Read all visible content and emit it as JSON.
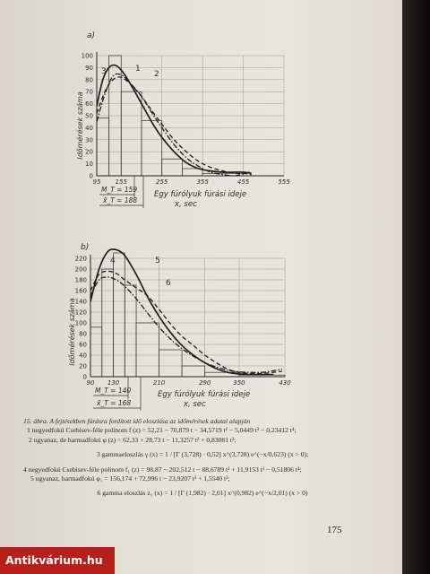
{
  "chart_data": [
    {
      "type": "line",
      "panel_label": "a)",
      "title": "",
      "xlabel": "Egy fúrólyuk fúrási ideje",
      "xlabel_unit": "x, sec",
      "ylabel": "Időmérések száma",
      "x_ticks": [
        "95",
        "155",
        "255",
        "355",
        "455",
        "555"
      ],
      "y_ticks": [
        "0",
        "10",
        "20",
        "30",
        "40",
        "50",
        "60",
        "70",
        "80",
        "90",
        "100"
      ],
      "xlim": [
        95,
        555
      ],
      "ylim": [
        0,
        100
      ],
      "histogram": [
        {
          "x0": 95,
          "x1": 125,
          "y": 48
        },
        {
          "x0": 125,
          "x1": 155,
          "y": 100
        },
        {
          "x0": 155,
          "x1": 205,
          "y": 70
        },
        {
          "x0": 205,
          "x1": 255,
          "y": 46
        },
        {
          "x0": 255,
          "x1": 305,
          "y": 14
        },
        {
          "x0": 305,
          "x1": 355,
          "y": 6
        },
        {
          "x0": 355,
          "x1": 455,
          "y": 2
        }
      ],
      "series": [
        {
          "name": "1",
          "style": "dash",
          "points": [
            [
              95,
              52
            ],
            [
              115,
              70
            ],
            [
              135,
              80
            ],
            [
              155,
              82
            ],
            [
              175,
              77
            ],
            [
              205,
              66
            ],
            [
              235,
              52
            ],
            [
              255,
              43
            ],
            [
              285,
              30
            ],
            [
              315,
              20
            ],
            [
              345,
              12
            ],
            [
              375,
              7
            ],
            [
              405,
              4
            ],
            [
              435,
              2
            ],
            [
              455,
              2
            ],
            [
              475,
              1
            ]
          ]
        },
        {
          "name": "2",
          "style": "dashdot",
          "points": [
            [
              95,
              45
            ],
            [
              115,
              68
            ],
            [
              135,
              83
            ],
            [
              155,
              84
            ],
            [
              175,
              78
            ],
            [
              205,
              66
            ],
            [
              235,
              50
            ],
            [
              255,
              40
            ],
            [
              285,
              26
            ],
            [
              315,
              15
            ],
            [
              345,
              8
            ],
            [
              375,
              3
            ],
            [
              405,
              1
            ],
            [
              435,
              0
            ],
            [
              455,
              2
            ],
            [
              475,
              3
            ]
          ]
        },
        {
          "name": "3",
          "style": "solid",
          "points": [
            [
              95,
              58
            ],
            [
              110,
              80
            ],
            [
              125,
              90
            ],
            [
              140,
              92
            ],
            [
              155,
              88
            ],
            [
              175,
              78
            ],
            [
              205,
              60
            ],
            [
              235,
              42
            ],
            [
              255,
              32
            ],
            [
              285,
              20
            ],
            [
              315,
              11
            ],
            [
              345,
              6
            ],
            [
              375,
              4
            ],
            [
              405,
              3
            ],
            [
              435,
              3
            ],
            [
              455,
              3
            ],
            [
              475,
              2
            ]
          ]
        }
      ],
      "annotations": [
        "1",
        "2",
        "3",
        "M_T = 159",
        "x̄_T = 188"
      ]
    },
    {
      "type": "line",
      "panel_label": "b)",
      "title": "",
      "xlabel": "Egy fúrólyuk fúrási ideje",
      "xlabel_unit": "x, sec",
      "ylabel": "Időmérések száma",
      "x_ticks": [
        "90",
        "130",
        "210",
        "290",
        "350",
        "430"
      ],
      "y_ticks": [
        "0",
        "20",
        "40",
        "60",
        "80",
        "100",
        "120",
        "140",
        "160",
        "180",
        "200",
        "220"
      ],
      "xlim": [
        90,
        430
      ],
      "ylim": [
        0,
        220
      ],
      "histogram": [
        {
          "x0": 90,
          "x1": 110,
          "y": 92
        },
        {
          "x0": 110,
          "x1": 130,
          "y": 200
        },
        {
          "x0": 130,
          "x1": 150,
          "y": 230
        },
        {
          "x0": 150,
          "x1": 170,
          "y": 170
        },
        {
          "x0": 170,
          "x1": 210,
          "y": 100
        },
        {
          "x0": 210,
          "x1": 250,
          "y": 50
        },
        {
          "x0": 250,
          "x1": 290,
          "y": 20
        },
        {
          "x0": 290,
          "x1": 350,
          "y": 8
        },
        {
          "x0": 350,
          "x1": 430,
          "y": 3
        }
      ],
      "series": [
        {
          "name": "4",
          "style": "dash",
          "points": [
            [
              90,
              160
            ],
            [
              105,
              190
            ],
            [
              120,
              196
            ],
            [
              135,
              192
            ],
            [
              150,
              180
            ],
            [
              170,
              165
            ],
            [
              190,
              150
            ],
            [
              210,
              125
            ],
            [
              230,
              98
            ],
            [
              250,
              75
            ],
            [
              270,
              58
            ],
            [
              290,
              40
            ],
            [
              310,
              26
            ],
            [
              330,
              14
            ],
            [
              350,
              8
            ],
            [
              370,
              6
            ],
            [
              390,
              6
            ],
            [
              410,
              8
            ],
            [
              425,
              10
            ]
          ]
        },
        {
          "name": "5",
          "style": "solid",
          "points": [
            [
              90,
              140
            ],
            [
              105,
              200
            ],
            [
              120,
              232
            ],
            [
              135,
              236
            ],
            [
              150,
              225
            ],
            [
              170,
              190
            ],
            [
              190,
              148
            ],
            [
              210,
              112
            ],
            [
              230,
              82
            ],
            [
              250,
              58
            ],
            [
              270,
              40
            ],
            [
              290,
              26
            ],
            [
              310,
              15
            ],
            [
              330,
              8
            ],
            [
              350,
              5
            ],
            [
              370,
              4
            ],
            [
              390,
              4
            ],
            [
              410,
              4
            ]
          ]
        },
        {
          "name": "6",
          "style": "dashdot",
          "points": [
            [
              90,
              150
            ],
            [
              105,
              180
            ],
            [
              120,
              185
            ],
            [
              135,
              180
            ],
            [
              150,
              168
            ],
            [
              170,
              145
            ],
            [
              190,
              118
            ],
            [
              210,
              92
            ],
            [
              230,
              70
            ],
            [
              250,
              52
            ],
            [
              270,
              38
            ],
            [
              290,
              26
            ],
            [
              310,
              18
            ],
            [
              330,
              12
            ],
            [
              350,
              9
            ],
            [
              370,
              8
            ],
            [
              390,
              8
            ],
            [
              410,
              11
            ],
            [
              425,
              14
            ]
          ]
        }
      ],
      "annotations": [
        "4",
        "5",
        "6",
        "M_T = 140",
        "x̄_T = 168"
      ]
    }
  ],
  "caption": {
    "line1": "15. ábra. A fejtésekben fúrásra fordított idő eloszlása az időmérések adatai alapján",
    "line2": "1 negyedfokú Csebisev-féle polinom f (z) = 52,21 − 70,879 t − 34,5719 t² − 5,0449 t³ − 0,23412 t⁴;",
    "line3": "2 ugyanaz, de harmadfokú φ (z) = 62,33 + 28,73 t − 11,3257 t² + 0,83081 t³;",
    "line4": "3 gammaeloszlás γ (x) = 1 / [Γ (3,728) · 0,52] x^(3,728) e^(−x/0,623) (x > 0);",
    "line5": "4 negyedfokú Csebisev-féle polinom f₁ (z) = 98,87 − 202,512 t − 88,6789 t² + 11,9153 t³ − 0,51806 t⁴;",
    "line6": "5 ugyanaz, harmadfokú φ₁ = 156,174 + 72,996 t − 23,9207 t² + 1,5540 t³;",
    "line7": "6 gamma eloszlás z₁ (x) = 1 / [Γ (1,982) · 2,01] x^(0,982) e^(−x/2,01) (x > 0)"
  },
  "page_number": "175",
  "watermark": "Antikvárium.hu",
  "colors": {
    "paper": "#e4e1d9",
    "ink": "#2a2a2a",
    "watermark_bg": "#b71f1b",
    "spine": "#141110"
  }
}
